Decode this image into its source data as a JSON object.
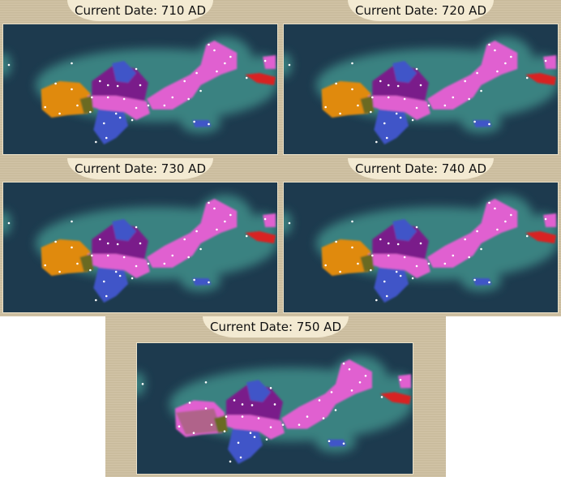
{
  "panels": [
    {
      "date_label": "Current Date: 710 AD",
      "west_color": "#e08a10"
    },
    {
      "date_label": "Current Date: 720 AD",
      "west_color": "#e08a10"
    },
    {
      "date_label": "Current Date: 730 AD",
      "west_color": "#e08a10"
    },
    {
      "date_label": "Current Date: 740 AD",
      "west_color": "#e08a10"
    },
    {
      "date_label": "Current Date: 750 AD",
      "west_color": "#e060d0"
    }
  ],
  "colors": {
    "ocean": "#1d3a4e",
    "coast_glow": "#3f8f8a",
    "pink_civ": "#e060d0",
    "purple_civ": "#7a1a8a",
    "blue_civ": "#3f55c8",
    "orange_civ": "#e08a10",
    "red_civ": "#d82020",
    "olive": "#6a6a20",
    "city_dot": "#ffffff"
  }
}
